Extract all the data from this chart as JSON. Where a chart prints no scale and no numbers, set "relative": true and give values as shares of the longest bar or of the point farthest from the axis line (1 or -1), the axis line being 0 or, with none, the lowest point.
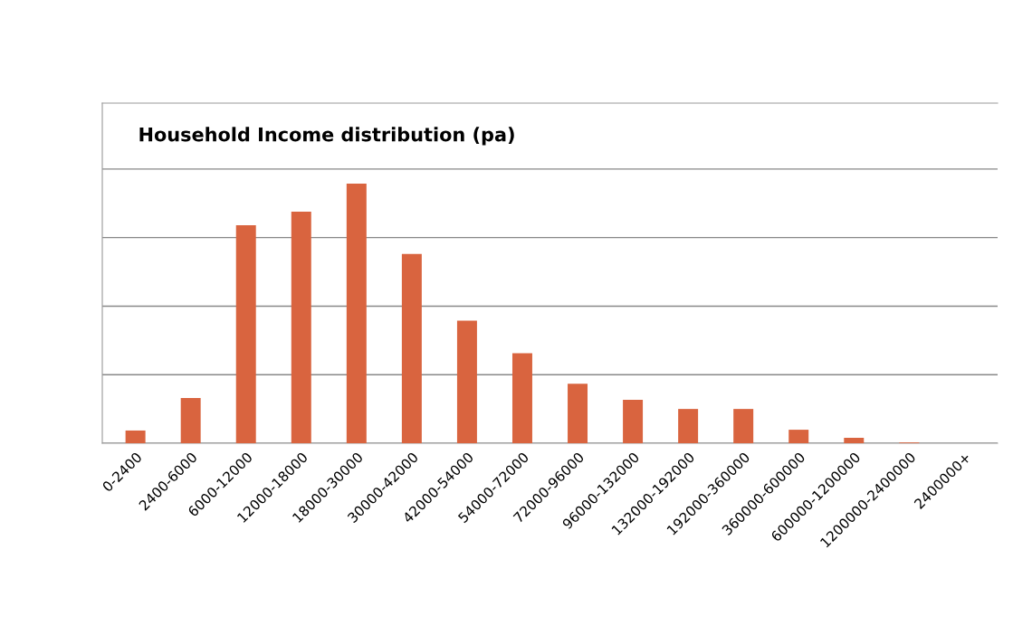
{
  "chart_data": {
    "type": "bar",
    "title": "Household Income distribution (pa)",
    "relative": true,
    "grid": "y",
    "color": "#d9643f",
    "categories": [
      "0-2400",
      "2400-6000",
      "6000-12000",
      "12000-18000",
      "18000-30000",
      "30000-42000",
      "42000-54000",
      "54000-72000",
      "72000-96000",
      "96000-132000",
      "132000-192000",
      "192000-360000",
      "360000-600000",
      "600000-1200000",
      "1200000-2400000",
      "2400000+"
    ],
    "values": [
      0.049,
      0.174,
      0.84,
      0.892,
      1,
      0.729,
      0.472,
      0.347,
      0.229,
      0.167,
      0.132,
      0.132,
      0.052,
      0.021,
      0.003,
      0
    ]
  }
}
